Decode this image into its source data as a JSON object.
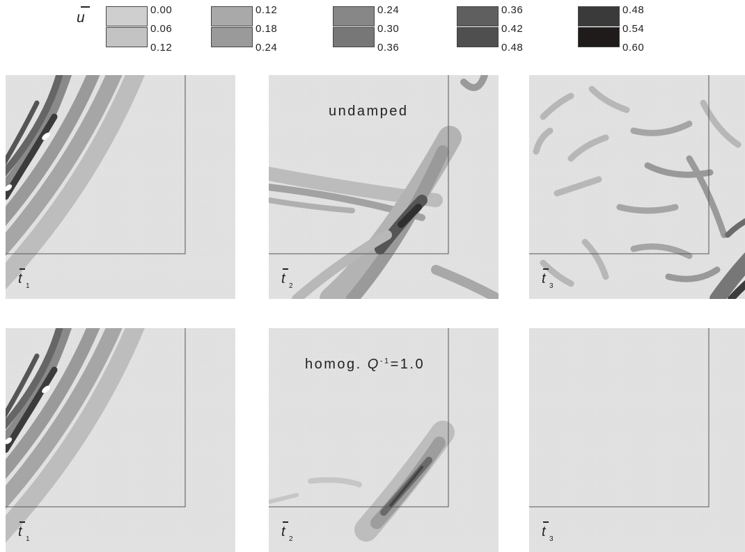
{
  "legend": {
    "variable": "u",
    "groups": [
      {
        "colors": [
          "#cfcfcf",
          "#c3c3c3"
        ],
        "values": [
          "0.00",
          "0.06",
          "0.12"
        ]
      },
      {
        "colors": [
          "#a9a9a9",
          "#9a9a9a"
        ],
        "values": [
          "0.12",
          "0.18",
          "0.24"
        ]
      },
      {
        "colors": [
          "#878787",
          "#777777"
        ],
        "values": [
          "0.24",
          "0.30",
          "0.36"
        ]
      },
      {
        "colors": [
          "#5f5f5f",
          "#4f4f4f"
        ],
        "values": [
          "0.36",
          "0.42",
          "0.48"
        ]
      },
      {
        "colors": [
          "#3a3a3a",
          "#1e1b1a"
        ],
        "values": [
          "0.48",
          "0.54",
          "0.60"
        ]
      }
    ]
  },
  "rows": [
    {
      "label": "undamped",
      "panels": [
        {
          "time": "t",
          "index": "1"
        },
        {
          "time": "t",
          "index": "2"
        },
        {
          "time": "t",
          "index": "3"
        }
      ]
    },
    {
      "label_main": "homog. ",
      "label_q": "Q",
      "label_exp": "-1",
      "label_value": "=1.0",
      "panels": [
        {
          "time": "t",
          "index": "1"
        },
        {
          "time": "t",
          "index": "2"
        },
        {
          "time": "t",
          "index": "3"
        }
      ]
    }
  ]
}
